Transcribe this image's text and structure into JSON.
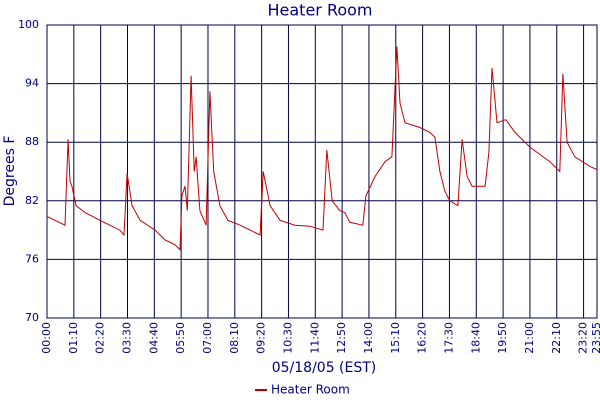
{
  "chart_data": {
    "type": "line",
    "title": "Heater Room",
    "x_label": "05/18/05 (EST)",
    "y_label": "Degrees F",
    "x": [
      "00:00",
      "00:47",
      "00:55",
      "01:00",
      "01:05",
      "01:16",
      "01:39",
      "02:18",
      "02:44",
      "03:10",
      "03:21",
      "03:29",
      "03:42",
      "04:03",
      "04:42",
      "05:08",
      "05:34",
      "05:47",
      "05:52",
      "06:00",
      "06:06",
      "06:16",
      "06:24",
      "06:29",
      "06:39",
      "06:55",
      "07:05",
      "07:15",
      "07:31",
      "07:52",
      "08:24",
      "08:50",
      "09:16",
      "09:24",
      "09:42",
      "10:08",
      "10:47",
      "11:26",
      "12:00",
      "12:10",
      "12:24",
      "12:44",
      "12:57",
      "13:10",
      "13:44",
      "13:52",
      "14:16",
      "14:42",
      "15:00",
      "15:13",
      "15:21",
      "15:34",
      "16:13",
      "16:39",
      "16:52",
      "17:05",
      "17:18",
      "17:31",
      "17:52",
      "18:03",
      "18:16",
      "18:29",
      "19:03",
      "19:13",
      "19:21",
      "19:34",
      "19:57",
      "20:21",
      "21:00",
      "21:52",
      "22:18",
      "22:26",
      "22:37",
      "22:57",
      "23:37",
      "23:55"
    ],
    "series": [
      {
        "name": "Heater Room",
        "color": "#c00000",
        "values": [
          80.4,
          79.5,
          88.3,
          84,
          83.5,
          81.5,
          80.8,
          80,
          79.5,
          79,
          78.5,
          84.8,
          81.5,
          80,
          79,
          78,
          77.5,
          77,
          82.5,
          83.5,
          81,
          94.8,
          85,
          86.5,
          81,
          79.5,
          93.2,
          85,
          81.5,
          80,
          79.5,
          79,
          78.5,
          85,
          81.5,
          80,
          79.5,
          79.4,
          79,
          87.2,
          82,
          81,
          80.8,
          79.8,
          79.5,
          82.5,
          84.5,
          86,
          86.5,
          97.8,
          92,
          90,
          89.5,
          89,
          88.5,
          85,
          83,
          82,
          81.5,
          88.3,
          84.5,
          83.5,
          83.5,
          87,
          95.6,
          90,
          90.3,
          89,
          87.5,
          86,
          85,
          95,
          88,
          86.5,
          85.5,
          85.2
        ]
      }
    ],
    "xlim": [
      "00:00",
      "23:55"
    ],
    "xticks": [
      "00:00",
      "01:10",
      "02:20",
      "03:30",
      "04:40",
      "05:50",
      "07:00",
      "08:10",
      "09:20",
      "10:30",
      "11:40",
      "12:50",
      "14:00",
      "15:10",
      "16:20",
      "17:30",
      "18:40",
      "19:50",
      "21:00",
      "22:10",
      "23:20",
      "23:55"
    ],
    "ylim": [
      70,
      100
    ],
    "yticks": [
      70,
      76,
      82,
      88,
      94,
      100
    ],
    "grid": true,
    "legend": "bottom"
  }
}
